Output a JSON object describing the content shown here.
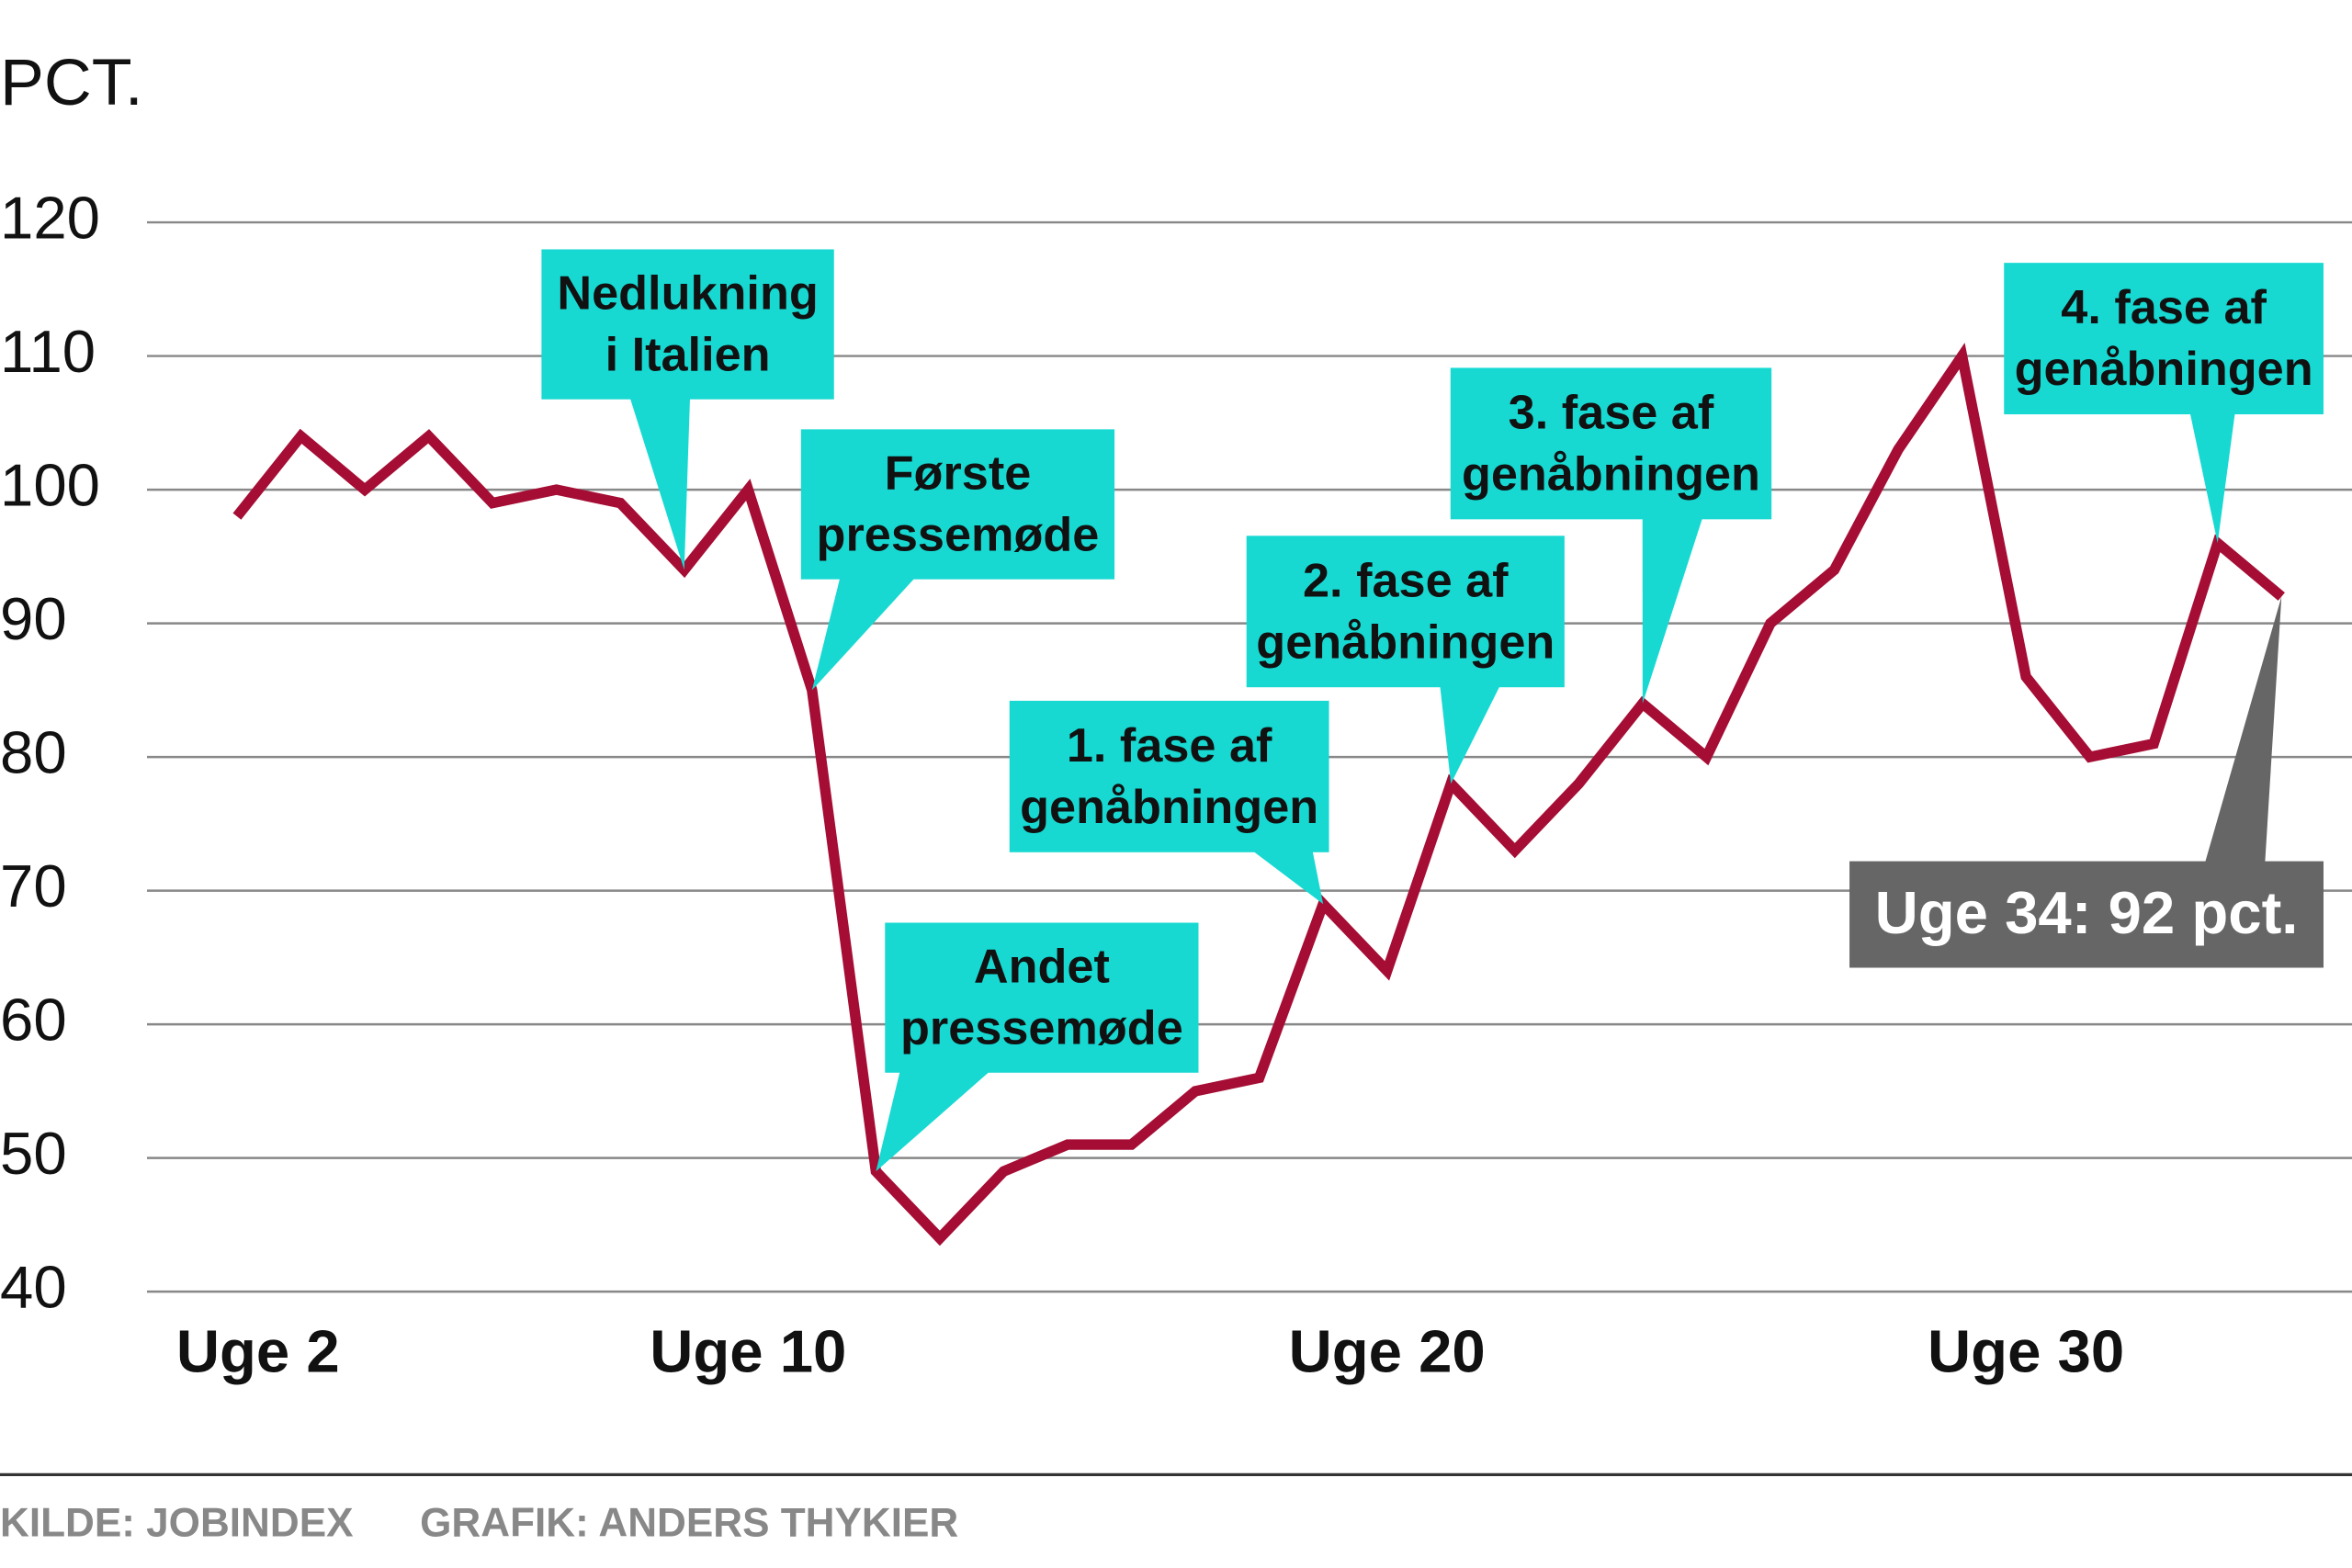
{
  "chart_data": {
    "type": "line",
    "y_label": "PCT.",
    "x": [
      2,
      3,
      4,
      5,
      6,
      7,
      8,
      9,
      10,
      11,
      12,
      13,
      14,
      15,
      16,
      17,
      18,
      19,
      20,
      21,
      22,
      23,
      24,
      25,
      26,
      27,
      28,
      29,
      30,
      31,
      32,
      33,
      34
    ],
    "series": [
      {
        "color": "#a50d34",
        "values": [
          98,
          104,
          100,
          104,
          99,
          100,
          99,
          94,
          100,
          85,
          49,
          44,
          49,
          51,
          51,
          55,
          56,
          69,
          64,
          78,
          73,
          78,
          84,
          80,
          90,
          94,
          103,
          110,
          86,
          80,
          81,
          96,
          92
        ]
      }
    ],
    "xlim": [
      2,
      34
    ],
    "xticks": [
      {
        "value": 2,
        "label": "Uge 2"
      },
      {
        "value": 10,
        "label": "Uge 10"
      },
      {
        "value": 20,
        "label": "Uge 20"
      },
      {
        "value": 30,
        "label": "Uge 30"
      }
    ],
    "ylim": [
      40,
      120
    ],
    "yticks": [
      40,
      50,
      60,
      70,
      80,
      90,
      100,
      110,
      120
    ],
    "grid": true,
    "annotations": [
      {
        "lines": [
          "Nedlukning",
          "i Italien"
        ],
        "x": 9,
        "color": "#17d9d2"
      },
      {
        "lines": [
          "Første",
          "pressemøde"
        ],
        "x": 11,
        "color": "#17d9d2"
      },
      {
        "lines": [
          "Andet",
          "pressemøde"
        ],
        "x": 12,
        "color": "#17d9d2"
      },
      {
        "lines": [
          "1. fase af",
          "genåbningen"
        ],
        "x": 19,
        "color": "#17d9d2"
      },
      {
        "lines": [
          "2. fase af",
          "genåbningen"
        ],
        "x": 21,
        "color": "#17d9d2"
      },
      {
        "lines": [
          "3. fase af",
          "genåbningen"
        ],
        "x": 24,
        "color": "#17d9d2"
      },
      {
        "lines": [
          "4. fase af",
          "genåbningen"
        ],
        "x": 33,
        "color": "#17d9d2"
      },
      {
        "lines": [
          "Uge 34: 92 pct."
        ],
        "x": 34,
        "color": "#666666"
      }
    ],
    "source": [
      "KILDE: JOBINDEX",
      "GRAFIK: ANDERS THYKIER"
    ]
  }
}
